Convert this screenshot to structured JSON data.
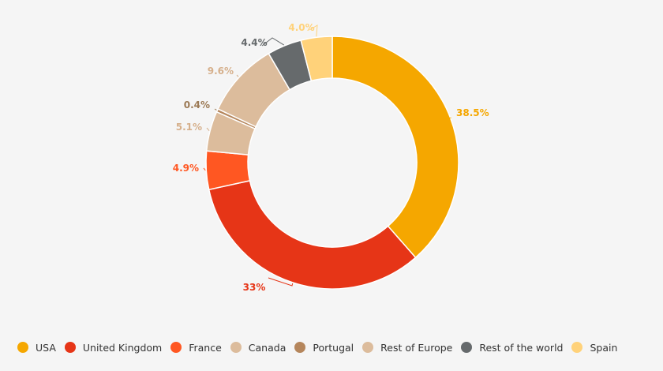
{
  "chart_data": {
    "type": "pie",
    "variant": "donut",
    "title": "",
    "legend_position": "bottom",
    "slices": [
      {
        "name": "USA",
        "value": 38.5,
        "label": "38.5%",
        "color": "#f5a700"
      },
      {
        "name": "United Kingdom",
        "value": 33,
        "label": "33%",
        "color": "#e63517"
      },
      {
        "name": "France",
        "value": 4.9,
        "label": "4.9%",
        "color": "#ff5722"
      },
      {
        "name": "Canada",
        "value": 5.1,
        "label": "5.1%",
        "color": "#dcbc9c"
      },
      {
        "name": "Portugal",
        "value": 0.4,
        "label": "0.4%",
        "color": "#b5865c"
      },
      {
        "name": "Rest of Europe",
        "value": 9.6,
        "label": "9.6%",
        "color": "#dcbc9c"
      },
      {
        "name": "Rest of the world",
        "value": 4.4,
        "label": "4.4%",
        "color": "#666a6c"
      },
      {
        "name": "Spain",
        "value": 4.0,
        "label": "4.0%",
        "color": "#ffd27a"
      }
    ]
  },
  "colors": {
    "background": "#f5f5f5",
    "legend_text": "#333333",
    "portugal_label": "#9c7a55",
    "canada_label": "#d6b08c",
    "rest_of_world_label": "#666a6c"
  }
}
